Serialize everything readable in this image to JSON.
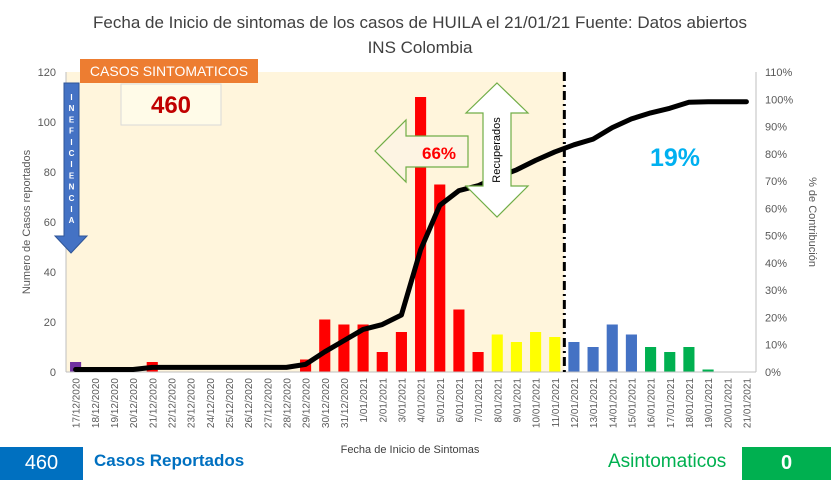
{
  "title_line1": "Fecha de  Inicio de sintomas de los casos de HUILA el 21/01/21 Fuente: Datos abiertos",
  "title_line2": "INS Colombia",
  "sintomaticos_label": "CASOS SINTOMATICOS",
  "sintomaticos_value": "460",
  "inefficiency_letters": [
    "I",
    "N",
    "E",
    "F",
    "I",
    "C",
    "I",
    "E",
    "N",
    "C",
    "I",
    "A"
  ],
  "arrow_pct": "66%",
  "recuperados_label": "Recuperados",
  "remaining_pct": "19%",
  "bottom": {
    "count": "460",
    "count_label": "Casos Reportados",
    "asym_label": "Asintomaticos",
    "asym_value": "0"
  },
  "chart_data": {
    "type": "bar",
    "xlabel": "Fecha de Inicio de Sintomas",
    "ylabel": "Numero  de Casos reportados",
    "y2label": "% de Contribución",
    "ylim": [
      0,
      120
    ],
    "y_ticks": [
      0,
      20,
      40,
      60,
      80,
      100,
      120
    ],
    "y2lim": [
      0,
      110
    ],
    "y2_ticks": [
      "0%",
      "10%",
      "20%",
      "30%",
      "40%",
      "50%",
      "60%",
      "70%",
      "80%",
      "90%",
      "100%",
      "110%"
    ],
    "categories": [
      "17/12/2020",
      "18/12/2020",
      "19/12/2020",
      "20/12/2020",
      "21/12/2020",
      "22/12/2020",
      "23/12/2020",
      "24/12/2020",
      "25/12/2020",
      "26/12/2020",
      "27/12/2020",
      "28/12/2020",
      "29/12/2020",
      "30/12/2020",
      "31/12/2020",
      "1/01/2021",
      "2/01/2021",
      "3/01/2021",
      "4/01/2021",
      "5/01/2021",
      "6/01/2021",
      "7/01/2021",
      "8/01/2021",
      "9/01/2021",
      "10/01/2021",
      "11/01/2021",
      "12/01/2021",
      "13/01/2021",
      "14/01/2021",
      "15/01/2021",
      "16/01/2021",
      "17/01/2021",
      "18/01/2021",
      "19/01/2021",
      "20/01/2021",
      "21/01/2021"
    ],
    "values": [
      4,
      0,
      0,
      0,
      4,
      0,
      0,
      0,
      0,
      0,
      0,
      0,
      5,
      21,
      19,
      19,
      8,
      16,
      110,
      75,
      25,
      8,
      15,
      12,
      16,
      14,
      12,
      10,
      19,
      15,
      10,
      8,
      10,
      1,
      0,
      0
    ],
    "bar_colors": [
      "#7030a0",
      "#7030a0",
      "#7030a0",
      "#7030a0",
      "#ff0000",
      "#ff0000",
      "#ff0000",
      "#ff0000",
      "#ff0000",
      "#ff0000",
      "#ff0000",
      "#ff0000",
      "#ff0000",
      "#ff0000",
      "#ff0000",
      "#ff0000",
      "#ff0000",
      "#ff0000",
      "#ff0000",
      "#ff0000",
      "#ff0000",
      "#ff0000",
      "#ffff00",
      "#ffff00",
      "#ffff00",
      "#ffff00",
      "#4472c4",
      "#4472c4",
      "#4472c4",
      "#4472c4",
      "#00b050",
      "#00b050",
      "#00b050",
      "#00b050",
      "#00b050",
      "#00b050"
    ],
    "cumulative_pct": [
      0.9,
      0.9,
      0.9,
      0.9,
      1.7,
      1.7,
      1.7,
      1.7,
      1.7,
      1.7,
      1.7,
      1.7,
      2.8,
      7.4,
      11.5,
      15.6,
      17.4,
      20.9,
      44.8,
      61.1,
      66.5,
      68.3,
      71.5,
      74.1,
      77.6,
      80.7,
      83.3,
      85.4,
      89.6,
      92.8,
      95.0,
      96.7,
      98.9,
      99.1,
      99.1,
      99.1
    ],
    "highlight_end_category": "11/01/2021",
    "grid": false
  }
}
